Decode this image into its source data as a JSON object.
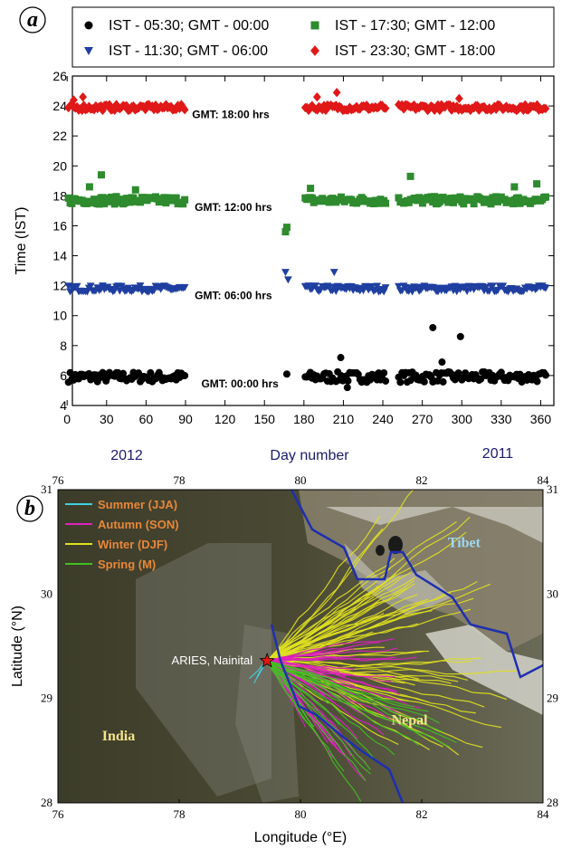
{
  "panel_a": {
    "letter": "a",
    "chart_data": {
      "type": "scatter",
      "xlabel": "Day number",
      "ylabel": "Time (IST)",
      "xlim": [
        0,
        366
      ],
      "ylim": [
        4,
        26
      ],
      "xticks": [
        "0",
        "30",
        "60",
        "90",
        "120",
        "150",
        "180",
        "210",
        "240",
        "270",
        "300",
        "330",
        "360"
      ],
      "yticks": [
        "4",
        "6",
        "8",
        "10",
        "12",
        "14",
        "16",
        "18",
        "20",
        "22",
        "24",
        "26"
      ],
      "year_labels": [
        "2012",
        "2011"
      ],
      "legend_position": "top",
      "series": [
        {
          "name": "IST - 05:30; GMT - 00:00",
          "color": "#000000",
          "marker": "circle",
          "base": 5.9,
          "jitter": 0.35,
          "outliers": [
            [
              167,
              6.1
            ],
            [
              278,
              9.2
            ],
            [
              299,
              8.6
            ],
            [
              208,
              7.2
            ],
            [
              213,
              5.2
            ],
            [
              285,
              6.9
            ]
          ]
        },
        {
          "name": "IST - 11:30; GMT - 06:00",
          "color": "#1f3fa0",
          "marker": "triangle",
          "base": 11.8,
          "jitter": 0.2,
          "outliers": [
            [
              166,
              12.9
            ],
            [
              168,
              12.4
            ],
            [
              203,
              12.9
            ]
          ]
        },
        {
          "name": "IST - 17:30; GMT - 12:00",
          "color": "#2e8b2e",
          "marker": "square",
          "base": 17.7,
          "jitter": 0.25,
          "outliers": [
            [
              26,
              19.4
            ],
            [
              17,
              18.6
            ],
            [
              52,
              18.4
            ],
            [
              166,
              15.6
            ],
            [
              167,
              15.9
            ],
            [
              261,
              19.3
            ],
            [
              185,
              18.5
            ],
            [
              340,
              18.6
            ],
            [
              357,
              18.8
            ]
          ]
        },
        {
          "name": "IST - 23:30; GMT - 18:00",
          "color": "#e01818",
          "marker": "diamond",
          "base": 23.9,
          "jitter": 0.2,
          "outliers": [
            [
              12,
              24.6
            ],
            [
              5,
              24.4
            ],
            [
              205,
              24.9
            ],
            [
              190,
              24.6
            ],
            [
              298,
              24.5
            ]
          ]
        }
      ],
      "day_ranges": [
        [
          1,
          90
        ],
        [
          181,
          243
        ],
        [
          252,
          365
        ]
      ],
      "annotations": [
        {
          "text": "GMT: 18:00 hrs",
          "x": 95,
          "y": 23.5
        },
        {
          "text": "GMT: 12:00 hrs",
          "x": 97,
          "y": 17.3
        },
        {
          "text": "GMT: 06:00 hrs",
          "x": 97,
          "y": 11.4
        },
        {
          "text": "GMT: 00:00 hrs",
          "x": 102,
          "y": 5.5
        }
      ]
    }
  },
  "panel_b": {
    "letter": "b",
    "chart_data": {
      "type": "map",
      "xlabel": "Longitude (°E)",
      "ylabel": "Latitude (°N)",
      "xlim": [
        76,
        84
      ],
      "ylim": [
        28,
        31
      ],
      "xticks": [
        "76",
        "78",
        "80",
        "82",
        "84"
      ],
      "yticks": [
        "28",
        "29",
        "30",
        "31"
      ],
      "legend": [
        {
          "name": "Summer (JJA)",
          "color": "#40d0e0"
        },
        {
          "name": "Autumn (SON)",
          "color": "#e020c0"
        },
        {
          "name": "Winter (DJF)",
          "color": "#e0e020"
        },
        {
          "name": "Spring (M)",
          "color": "#40c020"
        }
      ],
      "origin": {
        "label": "ARIES, Nainital",
        "lon": 79.45,
        "lat": 29.36
      },
      "regions": [
        {
          "label": "India",
          "lon": 77.0,
          "lat": 28.6,
          "color": "#f4e48a"
        },
        {
          "label": "Nepal",
          "lon": 81.8,
          "lat": 28.75,
          "color": "#f4e48a"
        },
        {
          "label": "Tibet",
          "lon": 82.7,
          "lat": 30.45,
          "color": "#a0d8f0"
        }
      ]
    }
  }
}
